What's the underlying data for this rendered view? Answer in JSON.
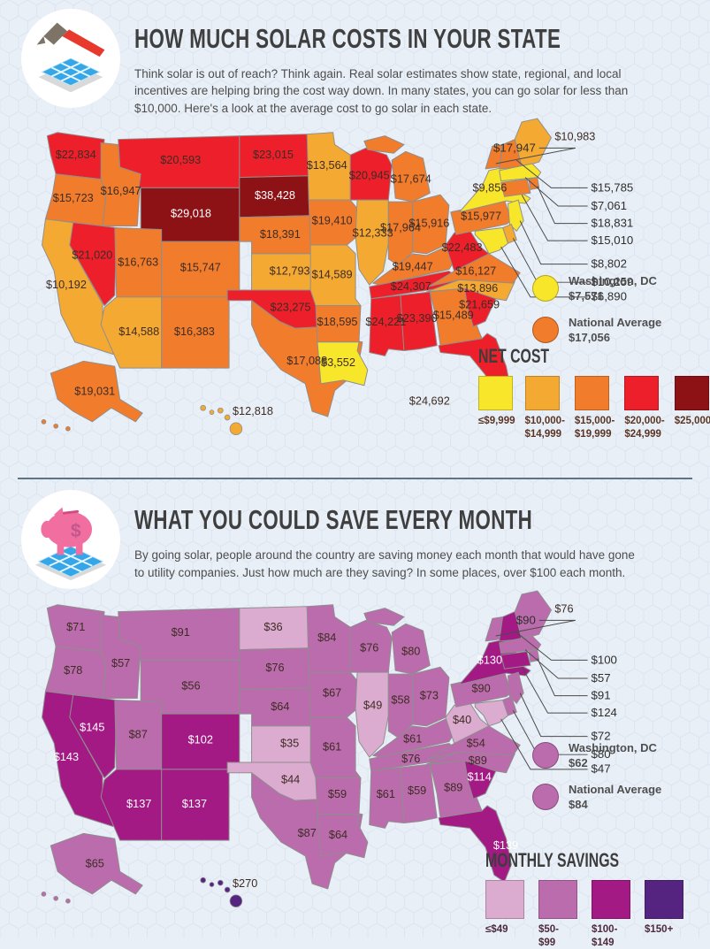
{
  "section1": {
    "icon": "hammer-solar-panel-icon",
    "title": "HOW MUCH SOLAR COSTS IN YOUR STATE",
    "description": "Think solar is out of reach? Think again. Real solar estimates show state, regional, and local incentives are helping bring the cost way down. In many states, you can go solar for less than $10,000. Here's a look at the average cost to go solar in each state.",
    "dc": {
      "label": "Washington, DC",
      "value": "$7,571",
      "band": 0
    },
    "national": {
      "label": "National Average",
      "value": "$17,056",
      "band": 2
    },
    "white_band_min": 4,
    "legend": {
      "title": "NET COST",
      "text_color": "#5a3423",
      "items": [
        {
          "label": "≤$9,999",
          "color": "#f8e62a"
        },
        {
          "label": "$10,000-\n$14,999",
          "color": "#f4a933"
        },
        {
          "label": "$15,000-\n$19,999",
          "color": "#f07c2c"
        },
        {
          "label": "$20,000-\n$24,999",
          "color": "#ec1f2b"
        },
        {
          "label": "$25,000+",
          "color": "#8d1216"
        }
      ]
    },
    "states": {
      "WA": {
        "value": "$22,834",
        "band": 3
      },
      "OR": {
        "value": "$15,723",
        "band": 2
      },
      "CA": {
        "value": "$10,192",
        "band": 1
      },
      "NV": {
        "value": "$21,020",
        "band": 3
      },
      "ID": {
        "value": "$16,947",
        "band": 2
      },
      "MT": {
        "value": "$20,593",
        "band": 3
      },
      "WY": {
        "value": "$29,018",
        "band": 4
      },
      "UT": {
        "value": "$16,763",
        "band": 2
      },
      "CO": {
        "value": "$15,747",
        "band": 2
      },
      "AZ": {
        "value": "$14,588",
        "band": 1
      },
      "NM": {
        "value": "$16,383",
        "band": 2
      },
      "ND": {
        "value": "$23,015",
        "band": 3
      },
      "SD": {
        "value": "$38,428",
        "band": 4
      },
      "NE": {
        "value": "$18,391",
        "band": 2
      },
      "KS": {
        "value": "$12,793",
        "band": 1
      },
      "OK": {
        "value": "$23,275",
        "band": 3
      },
      "TX": {
        "value": "$17,088",
        "band": 2
      },
      "MN": {
        "value": "$13,564",
        "band": 1
      },
      "IA": {
        "value": "$19,410",
        "band": 2
      },
      "MO": {
        "value": "$14,589",
        "band": 1
      },
      "AR": {
        "value": "$18,595",
        "band": 2
      },
      "LA": {
        "value": "$3,552",
        "band": 0
      },
      "WI": {
        "value": "$20,945",
        "band": 3
      },
      "IL": {
        "value": "$12,333",
        "band": 1
      },
      "MI": {
        "value": "$17,674",
        "band": 2
      },
      "IN": {
        "value": "$17,964",
        "band": 2
      },
      "OH": {
        "value": "$15,916",
        "band": 2
      },
      "KY": {
        "value": "$19,447",
        "band": 2
      },
      "TN": {
        "value": "$24,307",
        "band": 3
      },
      "MS": {
        "value": "$24,221",
        "band": 3
      },
      "AL": {
        "value": "$23,390",
        "band": 3
      },
      "GA": {
        "value": "$15,489",
        "band": 2
      },
      "FL": {
        "value": "$24,692",
        "band": 3
      },
      "SC": {
        "value": "$21,659",
        "band": 3
      },
      "NC": {
        "value": "$13,896",
        "band": 1
      },
      "VA": {
        "value": "$16,127",
        "band": 2
      },
      "WV": {
        "value": "$22,483",
        "band": 3
      },
      "PA": {
        "value": "$15,977",
        "band": 2
      },
      "NY": {
        "value": "$9,856",
        "band": 0
      },
      "NJ": {
        "value": "$8,802",
        "band": 0
      },
      "DE": {
        "value": "$10,259",
        "band": 1
      },
      "MD": {
        "value": "$6,890",
        "band": 0
      },
      "VT": {
        "value": "$17,947",
        "band": 2
      },
      "NH": {
        "value": "$15,785",
        "band": 2
      },
      "MA": {
        "value": "$7,061",
        "band": 0
      },
      "RI": {
        "value": "$18,831",
        "band": 2
      },
      "CT": {
        "value": "$15,010",
        "band": 2
      },
      "ME": {
        "value": "$10,983",
        "band": 1
      },
      "AK": {
        "value": "$19,031",
        "band": 2
      },
      "HI": {
        "value": "$12,818",
        "band": 1
      }
    }
  },
  "section2": {
    "icon": "piggy-bank-solar-panel-icon",
    "title": "WHAT YOU COULD SAVE EVERY MONTH",
    "description": "By going solar, people around the country are saving money each month that would have gone to utility companies. Just how much are they saving? In some places, over $100 each month.",
    "dc": {
      "label": "Washington, DC",
      "value": "$62",
      "band": 1
    },
    "national": {
      "label": "National Average",
      "value": "$84",
      "band": 1
    },
    "white_band_min": 2,
    "legend": {
      "title": "MONTHLY SAVINGS",
      "text_color": "#4d2a3c",
      "items": [
        {
          "label": "≤$49",
          "color": "#dcabd0"
        },
        {
          "label": "$50-\n$99",
          "color": "#bb6cac"
        },
        {
          "label": "$100-\n$149",
          "color": "#a31a85"
        },
        {
          "label": "$150+",
          "color": "#552480"
        }
      ]
    },
    "states": {
      "WA": {
        "value": "$71",
        "band": 1
      },
      "OR": {
        "value": "$78",
        "band": 1
      },
      "CA": {
        "value": "$143",
        "band": 2
      },
      "NV": {
        "value": "$145",
        "band": 2
      },
      "ID": {
        "value": "$57",
        "band": 1
      },
      "MT": {
        "value": "$91",
        "band": 1
      },
      "WY": {
        "value": "$56",
        "band": 1
      },
      "UT": {
        "value": "$87",
        "band": 1
      },
      "CO": {
        "value": "$102",
        "band": 2
      },
      "AZ": {
        "value": "$137",
        "band": 2
      },
      "NM": {
        "value": "$137",
        "band": 2
      },
      "ND": {
        "value": "$36",
        "band": 0
      },
      "SD": {
        "value": "$76",
        "band": 1
      },
      "NE": {
        "value": "$64",
        "band": 1
      },
      "KS": {
        "value": "$35",
        "band": 0
      },
      "OK": {
        "value": "$44",
        "band": 0
      },
      "TX": {
        "value": "$87",
        "band": 1
      },
      "MN": {
        "value": "$84",
        "band": 1
      },
      "IA": {
        "value": "$67",
        "band": 1
      },
      "MO": {
        "value": "$61",
        "band": 1
      },
      "AR": {
        "value": "$59",
        "band": 1
      },
      "LA": {
        "value": "$64",
        "band": 1
      },
      "WI": {
        "value": "$76",
        "band": 1
      },
      "IL": {
        "value": "$49",
        "band": 0
      },
      "MI": {
        "value": "$80",
        "band": 1
      },
      "IN": {
        "value": "$58",
        "band": 1
      },
      "OH": {
        "value": "$73",
        "band": 1
      },
      "KY": {
        "value": "$61",
        "band": 1
      },
      "TN": {
        "value": "$76",
        "band": 1
      },
      "MS": {
        "value": "$61",
        "band": 1
      },
      "AL": {
        "value": "$59",
        "band": 1
      },
      "GA": {
        "value": "$89",
        "band": 1
      },
      "FL": {
        "value": "$139",
        "band": 2
      },
      "SC": {
        "value": "$114",
        "band": 2
      },
      "NC": {
        "value": "$89",
        "band": 1
      },
      "VA": {
        "value": "$54",
        "band": 1
      },
      "WV": {
        "value": "$40",
        "band": 0
      },
      "PA": {
        "value": "$90",
        "band": 1
      },
      "NY": {
        "value": "$130",
        "band": 2
      },
      "NJ": {
        "value": "$72",
        "band": 1
      },
      "DE": {
        "value": "$80",
        "band": 1
      },
      "MD": {
        "value": "$47",
        "band": 0
      },
      "VT": {
        "value": "$90",
        "band": 1
      },
      "NH": {
        "value": "$100",
        "band": 2
      },
      "MA": {
        "value": "$57",
        "band": 1
      },
      "RI": {
        "value": "$91",
        "band": 1
      },
      "CT": {
        "value": "$124",
        "band": 2
      },
      "ME": {
        "value": "$76",
        "band": 1
      },
      "AK": {
        "value": "$65",
        "band": 1
      },
      "HI": {
        "value": "$270",
        "band": 3
      }
    }
  }
}
